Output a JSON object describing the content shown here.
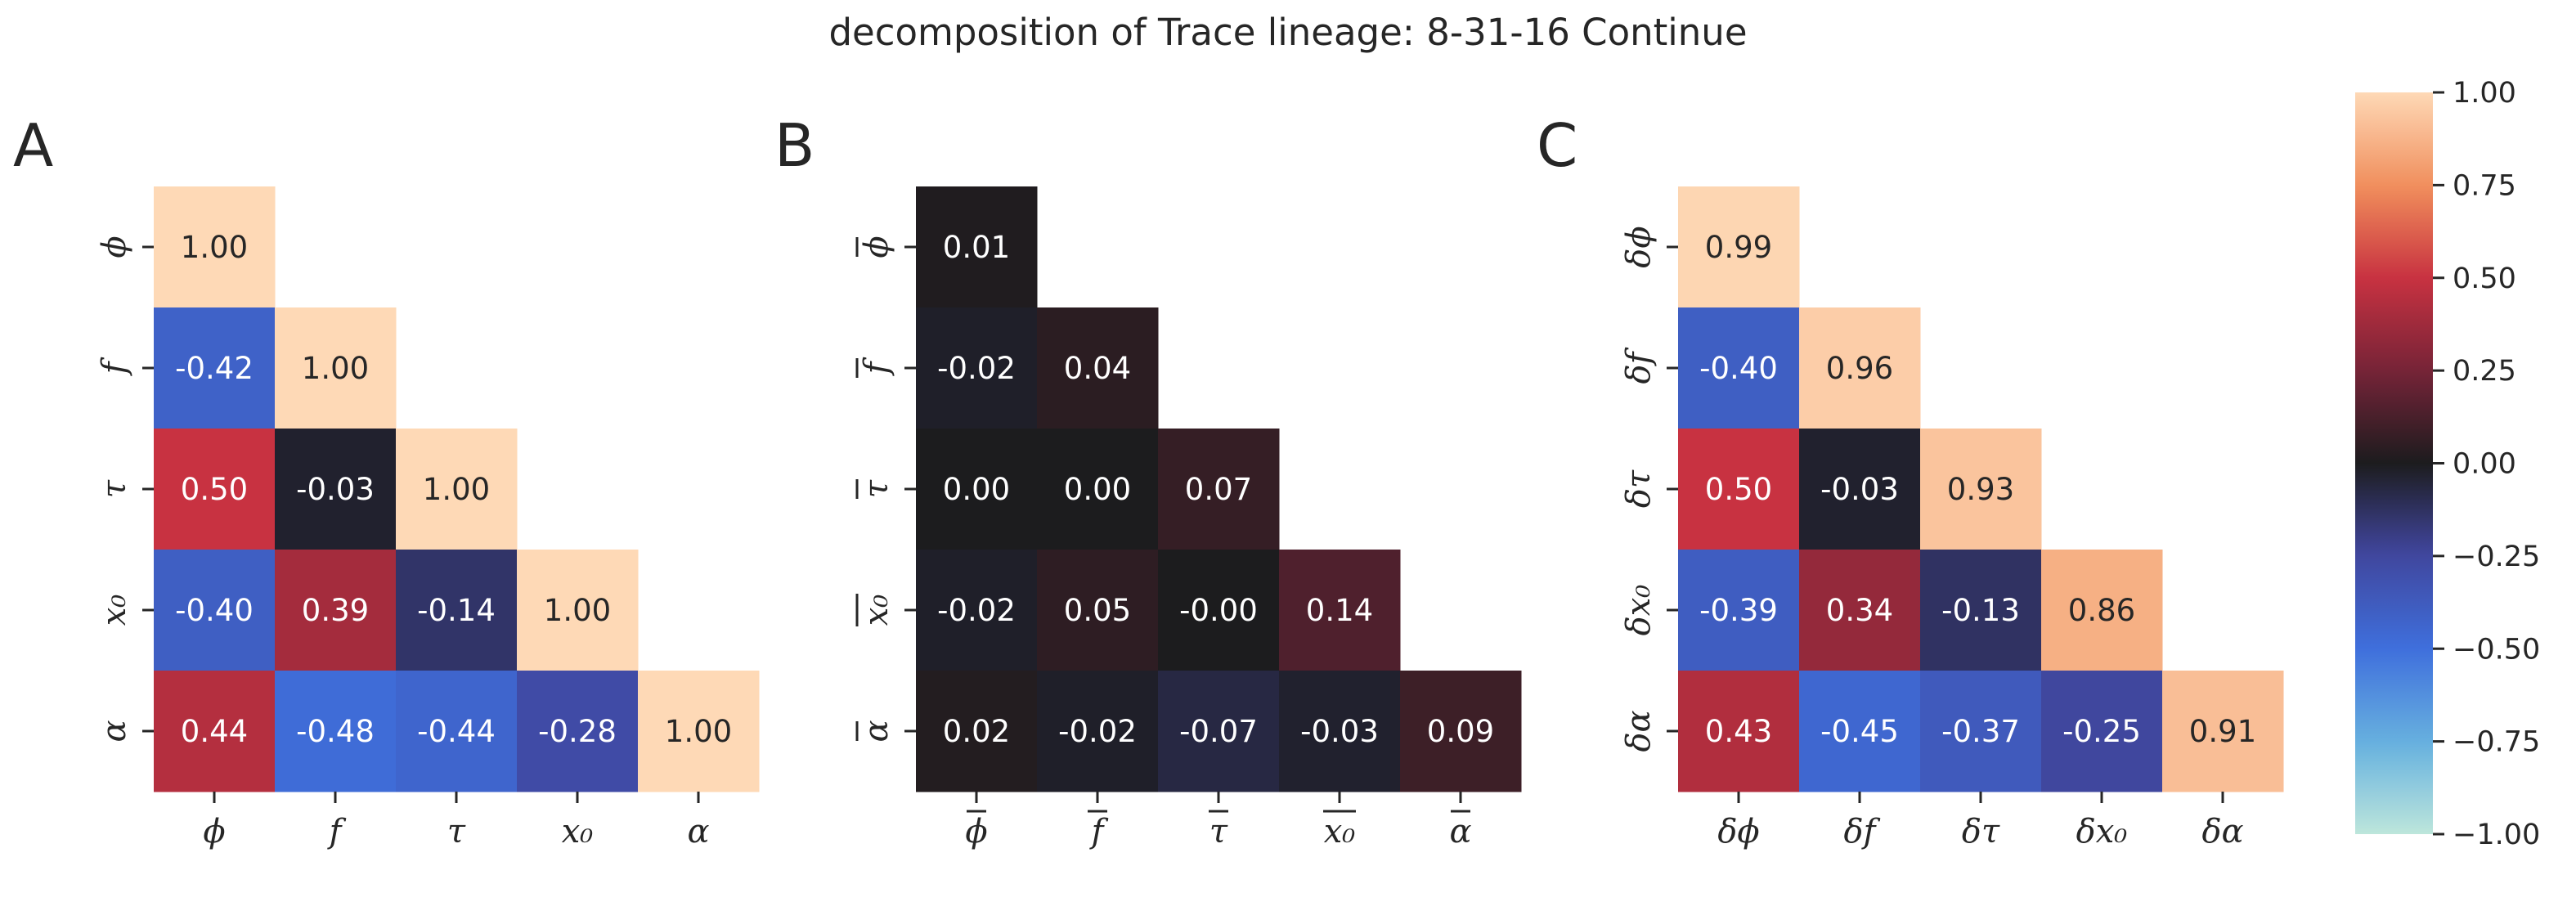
{
  "title": "decomposition of Trace lineage: 8-31-16 Continue",
  "chart_data": [
    {
      "type": "heatmap",
      "panel": "A",
      "labels": [
        "ϕ",
        "f",
        "τ",
        "x₀",
        "α"
      ],
      "matrix": [
        [
          1.0
        ],
        [
          -0.42,
          1.0
        ],
        [
          0.5,
          -0.03,
          1.0
        ],
        [
          -0.4,
          0.39,
          -0.14,
          1.0
        ],
        [
          0.44,
          -0.48,
          -0.44,
          -0.28,
          1.0
        ]
      ],
      "cell_text": [
        [
          "1.00"
        ],
        [
          "-0.42",
          "1.00"
        ],
        [
          "0.50",
          "-0.03",
          "1.00"
        ],
        [
          "-0.40",
          "0.39",
          "-0.14",
          "1.00"
        ],
        [
          "0.44",
          "-0.48",
          "-0.44",
          "-0.28",
          "1.00"
        ]
      ],
      "overline": false
    },
    {
      "type": "heatmap",
      "panel": "B",
      "labels": [
        "ϕ",
        "f",
        "τ",
        "x₀",
        "α"
      ],
      "matrix": [
        [
          0.01
        ],
        [
          -0.02,
          0.04
        ],
        [
          0.0,
          0.0,
          0.07
        ],
        [
          -0.02,
          0.05,
          -0.0,
          0.14
        ],
        [
          0.02,
          -0.02,
          -0.07,
          -0.03,
          0.09
        ]
      ],
      "cell_text": [
        [
          "0.01"
        ],
        [
          "-0.02",
          "0.04"
        ],
        [
          "0.00",
          "0.00",
          "0.07"
        ],
        [
          "-0.02",
          "0.05",
          "-0.00",
          "0.14"
        ],
        [
          "0.02",
          "-0.02",
          "-0.07",
          "-0.03",
          "0.09"
        ]
      ],
      "overline": true
    },
    {
      "type": "heatmap",
      "panel": "C",
      "labels": [
        "δϕ",
        "δf",
        "δτ",
        "δx₀",
        "δα"
      ],
      "matrix": [
        [
          0.99
        ],
        [
          -0.4,
          0.96
        ],
        [
          0.5,
          -0.03,
          0.93
        ],
        [
          -0.39,
          0.34,
          -0.13,
          0.86
        ],
        [
          0.43,
          -0.45,
          -0.37,
          -0.25,
          0.91
        ]
      ],
      "cell_text": [
        [
          "0.99"
        ],
        [
          "-0.40",
          "0.96"
        ],
        [
          "0.50",
          "-0.03",
          "0.93"
        ],
        [
          "-0.39",
          "0.34",
          "-0.13",
          "0.86"
        ],
        [
          "0.43",
          "-0.45",
          "-0.37",
          "-0.25",
          "0.91"
        ]
      ],
      "overline": false
    }
  ],
  "colorbar": {
    "colormap": "icefire",
    "vmin": -1.0,
    "vmax": 1.0,
    "ticks": [
      1.0,
      0.75,
      0.5,
      0.25,
      0.0,
      -0.25,
      -0.5,
      -0.75,
      -1.0
    ],
    "tick_labels": [
      "1.00",
      "0.75",
      "0.50",
      "0.25",
      "0.00",
      "−0.25",
      "−0.50",
      "−0.75",
      "−1.00"
    ]
  }
}
